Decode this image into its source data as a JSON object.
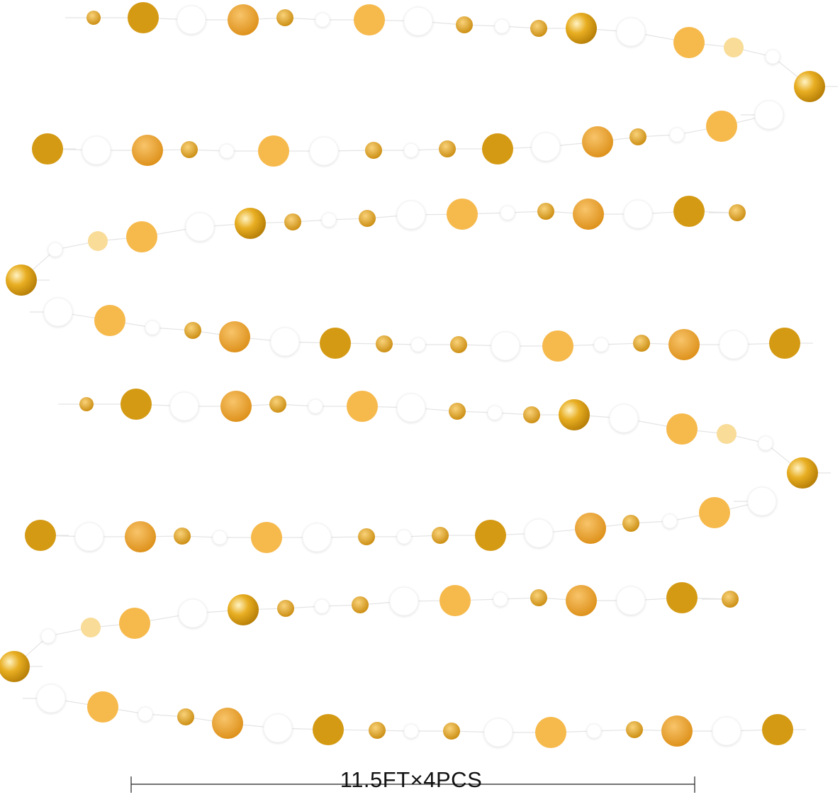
{
  "product": {
    "caption": "11.5FT×4PCS",
    "colors": {
      "dark_gold": "#d49a14",
      "orange_gold": "#eea22c",
      "light_gold": "#f6b94c",
      "pale_gold": "#f8dc98",
      "shiny_gold": "#e6ac1e",
      "white": "#ffffff",
      "string": "#e4e4e4"
    },
    "strands": 4
  }
}
